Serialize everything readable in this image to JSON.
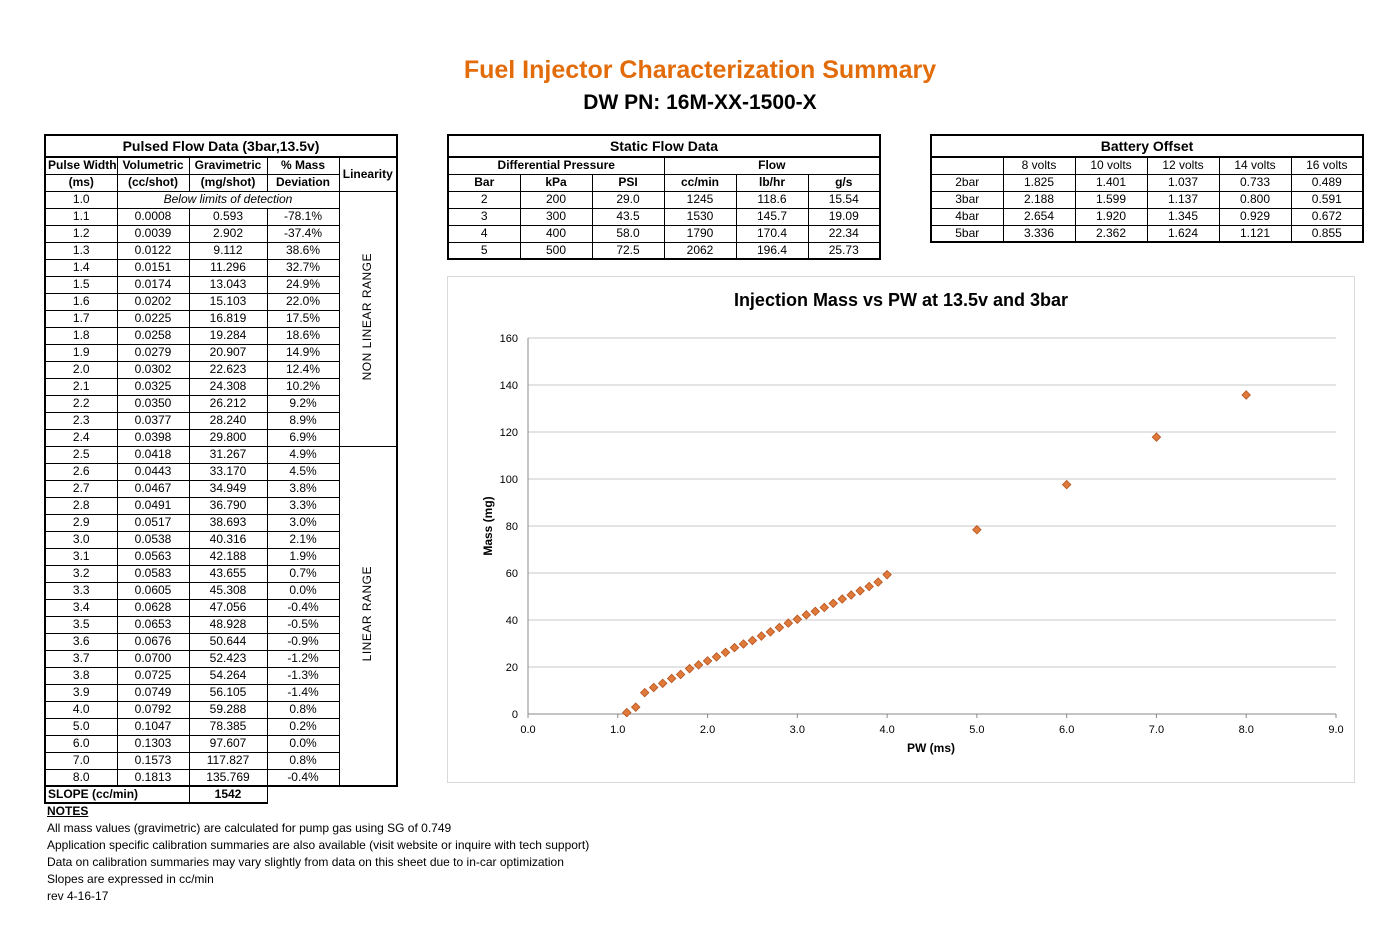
{
  "header": {
    "title": "Fuel Injector Characterization Summary",
    "part_number": "DW PN: 16M-XX-1500-X"
  },
  "pulsed": {
    "title": "Pulsed Flow Data (3bar,13.5v)",
    "headers_line1": [
      "Pulse Width",
      "Volumetric",
      "Gravimetric",
      "% Mass",
      "Linearity"
    ],
    "headers_line2": [
      "(ms)",
      "(cc/shot)",
      "(mg/shot)",
      "Deviation"
    ],
    "below_limits": "Below limits of detection",
    "non_linear_label": "NON LINEAR RANGE",
    "linear_label": "LINEAR RANGE",
    "rows": [
      [
        "1.0",
        "",
        "",
        ""
      ],
      [
        "1.1",
        "0.0008",
        "0.593",
        "-78.1%"
      ],
      [
        "1.2",
        "0.0039",
        "2.902",
        "-37.4%"
      ],
      [
        "1.3",
        "0.0122",
        "9.112",
        "38.6%"
      ],
      [
        "1.4",
        "0.0151",
        "11.296",
        "32.7%"
      ],
      [
        "1.5",
        "0.0174",
        "13.043",
        "24.9%"
      ],
      [
        "1.6",
        "0.0202",
        "15.103",
        "22.0%"
      ],
      [
        "1.7",
        "0.0225",
        "16.819",
        "17.5%"
      ],
      [
        "1.8",
        "0.0258",
        "19.284",
        "18.6%"
      ],
      [
        "1.9",
        "0.0279",
        "20.907",
        "14.9%"
      ],
      [
        "2.0",
        "0.0302",
        "22.623",
        "12.4%"
      ],
      [
        "2.1",
        "0.0325",
        "24.308",
        "10.2%"
      ],
      [
        "2.2",
        "0.0350",
        "26.212",
        "9.2%"
      ],
      [
        "2.3",
        "0.0377",
        "28.240",
        "8.9%"
      ],
      [
        "2.4",
        "0.0398",
        "29.800",
        "6.9%"
      ],
      [
        "2.5",
        "0.0418",
        "31.267",
        "4.9%"
      ],
      [
        "2.6",
        "0.0443",
        "33.170",
        "4.5%"
      ],
      [
        "2.7",
        "0.0467",
        "34.949",
        "3.8%"
      ],
      [
        "2.8",
        "0.0491",
        "36.790",
        "3.3%"
      ],
      [
        "2.9",
        "0.0517",
        "38.693",
        "3.0%"
      ],
      [
        "3.0",
        "0.0538",
        "40.316",
        "2.1%"
      ],
      [
        "3.1",
        "0.0563",
        "42.188",
        "1.9%"
      ],
      [
        "3.2",
        "0.0583",
        "43.655",
        "0.7%"
      ],
      [
        "3.3",
        "0.0605",
        "45.308",
        "0.0%"
      ],
      [
        "3.4",
        "0.0628",
        "47.056",
        "-0.4%"
      ],
      [
        "3.5",
        "0.0653",
        "48.928",
        "-0.5%"
      ],
      [
        "3.6",
        "0.0676",
        "50.644",
        "-0.9%"
      ],
      [
        "3.7",
        "0.0700",
        "52.423",
        "-1.2%"
      ],
      [
        "3.8",
        "0.0725",
        "54.264",
        "-1.3%"
      ],
      [
        "3.9",
        "0.0749",
        "56.105",
        "-1.4%"
      ],
      [
        "4.0",
        "0.0792",
        "59.288",
        "0.8%"
      ],
      [
        "5.0",
        "0.1047",
        "78.385",
        "0.2%"
      ],
      [
        "6.0",
        "0.1303",
        "97.607",
        "0.0%"
      ],
      [
        "7.0",
        "0.1573",
        "117.827",
        "0.8%"
      ],
      [
        "8.0",
        "0.1813",
        "135.769",
        "-0.4%"
      ]
    ],
    "slope_label": "SLOPE (cc/min)",
    "slope_value": "1542"
  },
  "static": {
    "title": "Static Flow Data",
    "group_headers": [
      "Differential Pressure",
      "Flow"
    ],
    "columns": [
      "Bar",
      "kPa",
      "PSI",
      "cc/min",
      "lb/hr",
      "g/s"
    ],
    "rows": [
      [
        "2",
        "200",
        "29.0",
        "1245",
        "118.6",
        "15.54"
      ],
      [
        "3",
        "300",
        "43.5",
        "1530",
        "145.7",
        "19.09"
      ],
      [
        "4",
        "400",
        "58.0",
        "1790",
        "170.4",
        "22.34"
      ],
      [
        "5",
        "500",
        "72.5",
        "2062",
        "196.4",
        "25.73"
      ]
    ]
  },
  "battery": {
    "title": "Battery Offset",
    "columns": [
      "",
      "8 volts",
      "10 volts",
      "12 volts",
      "14 volts",
      "16 volts"
    ],
    "rows": [
      [
        "2bar",
        "1.825",
        "1.401",
        "1.037",
        "0.733",
        "0.489"
      ],
      [
        "3bar",
        "2.188",
        "1.599",
        "1.137",
        "0.800",
        "0.591"
      ],
      [
        "4bar",
        "2.654",
        "1.920",
        "1.345",
        "0.929",
        "0.672"
      ],
      [
        "5bar",
        "3.336",
        "2.362",
        "1.624",
        "1.121",
        "0.855"
      ]
    ]
  },
  "notes": {
    "heading": "NOTES",
    "lines": [
      "All mass values (gravimetric) are calculated for pump gas using SG of 0.749",
      "Application specific calibration summaries are also available (visit website or inquire with tech support)",
      "Data on calibration summaries may vary slightly from data on this sheet due to in-car optimization",
      "Slopes are expressed in cc/min",
      "rev 4-16-17"
    ]
  },
  "colors": {
    "title": "#E36C0A",
    "marker": "#E07A3A",
    "marker_edge": "#B5531F",
    "gridline": "#c8c8c8"
  },
  "chart_data": {
    "type": "scatter",
    "title": "Injection Mass vs PW at 13.5v and 3bar",
    "xlabel": "PW (ms)",
    "ylabel": "Mass (mg)",
    "xlim": [
      0,
      9
    ],
    "ylim": [
      0,
      160
    ],
    "xticks": [
      "0.0",
      "1.0",
      "2.0",
      "3.0",
      "4.0",
      "5.0",
      "6.0",
      "7.0",
      "8.0",
      "9.0"
    ],
    "yticks": [
      "0",
      "20",
      "40",
      "60",
      "80",
      "100",
      "120",
      "140",
      "160"
    ],
    "grid": "horizontal",
    "legend": "none",
    "marker": "diamond",
    "x": [
      1.1,
      1.2,
      1.3,
      1.4,
      1.5,
      1.6,
      1.7,
      1.8,
      1.9,
      2.0,
      2.1,
      2.2,
      2.3,
      2.4,
      2.5,
      2.6,
      2.7,
      2.8,
      2.9,
      3.0,
      3.1,
      3.2,
      3.3,
      3.4,
      3.5,
      3.6,
      3.7,
      3.8,
      3.9,
      4.0,
      5.0,
      6.0,
      7.0,
      8.0
    ],
    "y": [
      0.593,
      2.902,
      9.112,
      11.296,
      13.043,
      15.103,
      16.819,
      19.284,
      20.907,
      22.623,
      24.308,
      26.212,
      28.24,
      29.8,
      31.267,
      33.17,
      34.949,
      36.79,
      38.693,
      40.316,
      42.188,
      43.655,
      45.308,
      47.056,
      48.928,
      50.644,
      52.423,
      54.264,
      56.105,
      59.288,
      78.385,
      97.607,
      117.827,
      135.769
    ]
  }
}
